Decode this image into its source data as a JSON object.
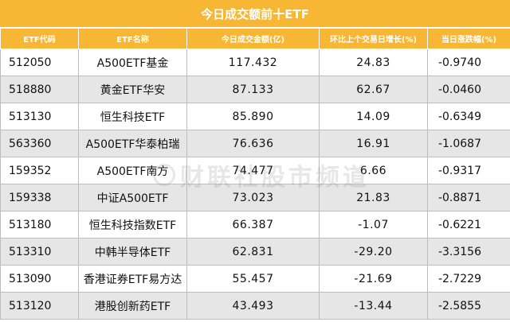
{
  "title": "今日成交额前十ETF",
  "columns": [
    "ETF代码",
    "ETF名称",
    "今日成交金额(亿)",
    "环比上个交易日增长(%)",
    "当日涨跌幅(%)"
  ],
  "rows": [
    {
      "code": "512050",
      "name": "A500ETF基金",
      "turnover": "117.432",
      "growth": "24.83",
      "change": "-0.9740"
    },
    {
      "code": "518880",
      "name": "黄金ETF华安",
      "turnover": "87.133",
      "growth": "62.67",
      "change": "-0.0460"
    },
    {
      "code": "513130",
      "name": "恒生科技ETF",
      "turnover": "85.890",
      "growth": "14.09",
      "change": "-0.6349"
    },
    {
      "code": "563360",
      "name": "A500ETF华泰柏瑞",
      "turnover": "76.636",
      "growth": "16.91",
      "change": "-1.0687"
    },
    {
      "code": "159352",
      "name": "A500ETF南方",
      "turnover": "74.477",
      "growth": "6.66",
      "change": "-0.9317"
    },
    {
      "code": "159338",
      "name": "中证A500ETF",
      "turnover": "73.023",
      "growth": "21.83",
      "change": "-0.8871"
    },
    {
      "code": "513180",
      "name": "恒生科技指数ETF",
      "turnover": "66.387",
      "growth": "-1.07",
      "change": "-0.6221"
    },
    {
      "code": "513310",
      "name": "中韩半导体ETF",
      "turnover": "62.831",
      "growth": "-29.20",
      "change": "-3.3156"
    },
    {
      "code": "513090",
      "name": "香港证券ETF易方达",
      "turnover": "55.457",
      "growth": "-21.69",
      "change": "-2.7229"
    },
    {
      "code": "513120",
      "name": "港股创新药ETF",
      "turnover": "43.493",
      "growth": "-13.44",
      "change": "-2.5855"
    }
  ],
  "watermark": "财联社股市频道",
  "colors": {
    "header": "#f7b633",
    "stripe": "#e6e6e6"
  }
}
